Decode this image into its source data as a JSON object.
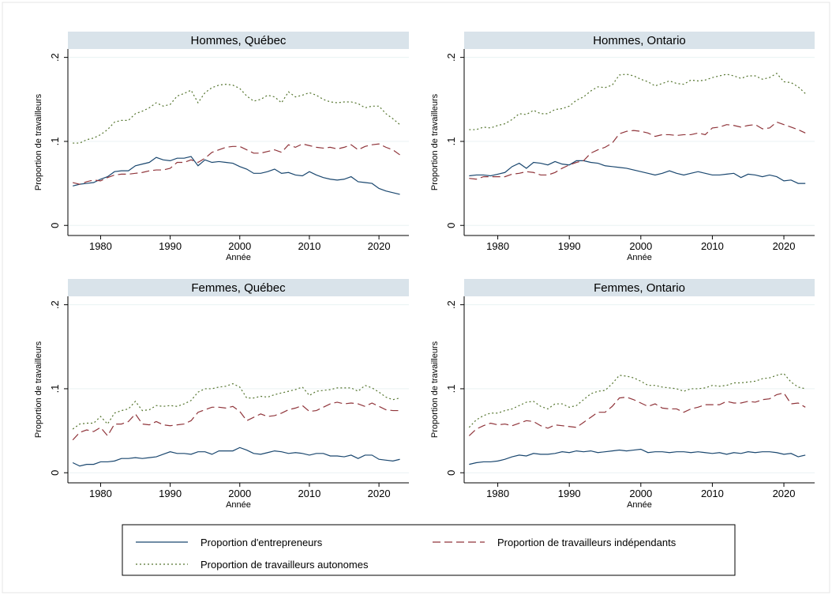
{
  "chart_data": [
    {
      "type": "line",
      "title": "Hommes, Québec",
      "xlabel": "Année",
      "ylabel": "Proportion de travailleurs",
      "x": [
        1976,
        1977,
        1978,
        1979,
        1980,
        1981,
        1982,
        1983,
        1984,
        1985,
        1986,
        1987,
        1988,
        1989,
        1990,
        1991,
        1992,
        1993,
        1994,
        1995,
        1996,
        1997,
        1998,
        1999,
        2000,
        2001,
        2002,
        2003,
        2004,
        2005,
        2006,
        2007,
        2008,
        2009,
        2010,
        2011,
        2012,
        2013,
        2014,
        2015,
        2016,
        2017,
        2018,
        2019,
        2020,
        2021,
        2022,
        2023
      ],
      "xlim": [
        1975.3,
        2024.3
      ],
      "xticks": [
        1980,
        1990,
        2000,
        2010,
        2020
      ],
      "ylim": [
        -0.012,
        0.21
      ],
      "yticks": [
        0,
        {
          "value": 0.1,
          "label": ".1"
        },
        {
          "value": 0.2,
          "label": ".2"
        }
      ],
      "grid": true,
      "series": [
        {
          "name": "Proportion d'entrepreneurs",
          "color": "#1a476f",
          "dash": "solid",
          "values": [
            0.047,
            0.049,
            0.05,
            0.051,
            0.055,
            0.058,
            0.064,
            0.065,
            0.065,
            0.071,
            0.073,
            0.075,
            0.081,
            0.078,
            0.077,
            0.08,
            0.08,
            0.082,
            0.071,
            0.078,
            0.075,
            0.076,
            0.075,
            0.074,
            0.07,
            0.067,
            0.062,
            0.062,
            0.064,
            0.067,
            0.062,
            0.063,
            0.06,
            0.059,
            0.064,
            0.06,
            0.057,
            0.055,
            0.054,
            0.055,
            0.058,
            0.052,
            0.051,
            0.05,
            0.044,
            0.041,
            0.039,
            0.037
          ]
        },
        {
          "name": "Proportion de travailleurs indépendants",
          "color": "#90353b",
          "dash": "long",
          "values": [
            0.051,
            0.049,
            0.052,
            0.054,
            0.053,
            0.057,
            0.06,
            0.061,
            0.061,
            0.062,
            0.063,
            0.065,
            0.066,
            0.066,
            0.068,
            0.075,
            0.075,
            0.078,
            0.075,
            0.08,
            0.087,
            0.09,
            0.093,
            0.094,
            0.094,
            0.09,
            0.086,
            0.086,
            0.088,
            0.09,
            0.087,
            0.096,
            0.093,
            0.097,
            0.095,
            0.093,
            0.092,
            0.093,
            0.091,
            0.093,
            0.096,
            0.09,
            0.094,
            0.096,
            0.097,
            0.093,
            0.09,
            0.084
          ]
        },
        {
          "name": "Proportion de travailleurs autonomes",
          "color": "#55752f",
          "dash": "dot",
          "values": [
            0.098,
            0.098,
            0.102,
            0.104,
            0.108,
            0.114,
            0.123,
            0.125,
            0.125,
            0.133,
            0.136,
            0.14,
            0.146,
            0.142,
            0.144,
            0.154,
            0.157,
            0.161,
            0.146,
            0.158,
            0.164,
            0.167,
            0.168,
            0.167,
            0.163,
            0.154,
            0.148,
            0.15,
            0.155,
            0.153,
            0.146,
            0.159,
            0.153,
            0.155,
            0.158,
            0.155,
            0.15,
            0.147,
            0.146,
            0.147,
            0.147,
            0.145,
            0.14,
            0.142,
            0.142,
            0.133,
            0.127,
            0.12
          ]
        }
      ]
    },
    {
      "type": "line",
      "title": "Hommes, Ontario",
      "xlabel": "Année",
      "ylabel": "Proportion de travailleurs",
      "x": [
        1976,
        1977,
        1978,
        1979,
        1980,
        1981,
        1982,
        1983,
        1984,
        1985,
        1986,
        1987,
        1988,
        1989,
        1990,
        1991,
        1992,
        1993,
        1994,
        1995,
        1996,
        1997,
        1998,
        1999,
        2000,
        2001,
        2002,
        2003,
        2004,
        2005,
        2006,
        2007,
        2008,
        2009,
        2010,
        2011,
        2012,
        2013,
        2014,
        2015,
        2016,
        2017,
        2018,
        2019,
        2020,
        2021,
        2022,
        2023
      ],
      "xlim": [
        1975.3,
        2024.3
      ],
      "xticks": [
        1980,
        1990,
        2000,
        2010,
        2020
      ],
      "ylim": [
        -0.012,
        0.21
      ],
      "yticks": [
        0,
        {
          "value": 0.1,
          "label": ".1"
        },
        {
          "value": 0.2,
          "label": ".2"
        }
      ],
      "grid": true,
      "series": [
        {
          "name": "Proportion d'entrepreneurs",
          "color": "#1a476f",
          "dash": "solid",
          "values": [
            0.059,
            0.06,
            0.06,
            0.059,
            0.061,
            0.063,
            0.07,
            0.074,
            0.068,
            0.075,
            0.074,
            0.072,
            0.076,
            0.073,
            0.072,
            0.077,
            0.077,
            0.075,
            0.074,
            0.071,
            0.07,
            0.069,
            0.068,
            0.066,
            0.064,
            0.062,
            0.06,
            0.062,
            0.065,
            0.062,
            0.06,
            0.062,
            0.064,
            0.062,
            0.06,
            0.06,
            0.061,
            0.062,
            0.057,
            0.061,
            0.06,
            0.058,
            0.06,
            0.058,
            0.053,
            0.054,
            0.05,
            0.05
          ]
        },
        {
          "name": "Proportion de travailleurs indépendants",
          "color": "#90353b",
          "dash": "long",
          "values": [
            0.056,
            0.055,
            0.058,
            0.058,
            0.058,
            0.058,
            0.061,
            0.062,
            0.064,
            0.063,
            0.06,
            0.06,
            0.063,
            0.068,
            0.072,
            0.075,
            0.077,
            0.086,
            0.09,
            0.093,
            0.098,
            0.109,
            0.112,
            0.113,
            0.112,
            0.11,
            0.106,
            0.108,
            0.108,
            0.107,
            0.108,
            0.108,
            0.11,
            0.108,
            0.116,
            0.117,
            0.12,
            0.119,
            0.117,
            0.119,
            0.12,
            0.115,
            0.116,
            0.123,
            0.12,
            0.117,
            0.114,
            0.11
          ]
        },
        {
          "name": "Proportion de travailleurs autonomes",
          "color": "#55752f",
          "dash": "dot",
          "values": [
            0.114,
            0.114,
            0.117,
            0.116,
            0.119,
            0.121,
            0.126,
            0.133,
            0.132,
            0.137,
            0.133,
            0.133,
            0.138,
            0.139,
            0.142,
            0.149,
            0.153,
            0.16,
            0.165,
            0.164,
            0.167,
            0.179,
            0.18,
            0.178,
            0.174,
            0.171,
            0.166,
            0.169,
            0.172,
            0.169,
            0.168,
            0.173,
            0.172,
            0.173,
            0.176,
            0.178,
            0.18,
            0.178,
            0.175,
            0.178,
            0.178,
            0.174,
            0.176,
            0.181,
            0.171,
            0.17,
            0.165,
            0.157
          ]
        }
      ]
    },
    {
      "type": "line",
      "title": "Femmes, Québec",
      "xlabel": "Année",
      "ylabel": "Proportion de travailleurs",
      "x": [
        1976,
        1977,
        1978,
        1979,
        1980,
        1981,
        1982,
        1983,
        1984,
        1985,
        1986,
        1987,
        1988,
        1989,
        1990,
        1991,
        1992,
        1993,
        1994,
        1995,
        1996,
        1997,
        1998,
        1999,
        2000,
        2001,
        2002,
        2003,
        2004,
        2005,
        2006,
        2007,
        2008,
        2009,
        2010,
        2011,
        2012,
        2013,
        2014,
        2015,
        2016,
        2017,
        2018,
        2019,
        2020,
        2021,
        2022,
        2023
      ],
      "xlim": [
        1975.3,
        2024.3
      ],
      "xticks": [
        1980,
        1990,
        2000,
        2010,
        2020
      ],
      "ylim": [
        -0.012,
        0.21
      ],
      "yticks": [
        0,
        {
          "value": 0.1,
          "label": ".1"
        },
        {
          "value": 0.2,
          "label": ".2"
        }
      ],
      "grid": true,
      "series": [
        {
          "name": "Proportion d'entrepreneurs",
          "color": "#1a476f",
          "dash": "solid",
          "values": [
            0.012,
            0.008,
            0.01,
            0.01,
            0.013,
            0.013,
            0.014,
            0.017,
            0.017,
            0.018,
            0.017,
            0.018,
            0.019,
            0.022,
            0.025,
            0.023,
            0.023,
            0.022,
            0.025,
            0.025,
            0.022,
            0.026,
            0.026,
            0.026,
            0.03,
            0.027,
            0.023,
            0.022,
            0.024,
            0.026,
            0.025,
            0.023,
            0.024,
            0.023,
            0.021,
            0.023,
            0.023,
            0.02,
            0.02,
            0.019,
            0.021,
            0.017,
            0.021,
            0.021,
            0.016,
            0.015,
            0.014,
            0.016
          ]
        },
        {
          "name": "Proportion de travailleurs indépendants",
          "color": "#90353b",
          "dash": "long",
          "values": [
            0.039,
            0.048,
            0.051,
            0.049,
            0.054,
            0.044,
            0.058,
            0.058,
            0.061,
            0.07,
            0.058,
            0.057,
            0.061,
            0.057,
            0.056,
            0.057,
            0.058,
            0.062,
            0.072,
            0.075,
            0.078,
            0.078,
            0.077,
            0.079,
            0.073,
            0.062,
            0.066,
            0.07,
            0.067,
            0.068,
            0.071,
            0.075,
            0.077,
            0.08,
            0.073,
            0.074,
            0.078,
            0.082,
            0.084,
            0.082,
            0.083,
            0.082,
            0.079,
            0.083,
            0.079,
            0.075,
            0.074,
            0.074
          ]
        },
        {
          "name": "Proportion de travailleurs autonomes",
          "color": "#55752f",
          "dash": "dot",
          "values": [
            0.052,
            0.058,
            0.059,
            0.059,
            0.067,
            0.058,
            0.071,
            0.074,
            0.076,
            0.085,
            0.074,
            0.075,
            0.08,
            0.079,
            0.08,
            0.079,
            0.082,
            0.086,
            0.096,
            0.1,
            0.1,
            0.102,
            0.103,
            0.106,
            0.102,
            0.089,
            0.089,
            0.091,
            0.09,
            0.093,
            0.095,
            0.097,
            0.099,
            0.102,
            0.092,
            0.097,
            0.098,
            0.099,
            0.101,
            0.101,
            0.101,
            0.097,
            0.104,
            0.101,
            0.096,
            0.09,
            0.087,
            0.089
          ]
        }
      ]
    },
    {
      "type": "line",
      "title": "Femmes, Ontario",
      "xlabel": "Année",
      "ylabel": "Proportion de travailleurs",
      "x": [
        1976,
        1977,
        1978,
        1979,
        1980,
        1981,
        1982,
        1983,
        1984,
        1985,
        1986,
        1987,
        1988,
        1989,
        1990,
        1991,
        1992,
        1993,
        1994,
        1995,
        1996,
        1997,
        1998,
        1999,
        2000,
        2001,
        2002,
        2003,
        2004,
        2005,
        2006,
        2007,
        2008,
        2009,
        2010,
        2011,
        2012,
        2013,
        2014,
        2015,
        2016,
        2017,
        2018,
        2019,
        2020,
        2021,
        2022,
        2023
      ],
      "xlim": [
        1975.3,
        2024.3
      ],
      "xticks": [
        1980,
        1990,
        2000,
        2010,
        2020
      ],
      "ylim": [
        -0.012,
        0.21
      ],
      "yticks": [
        0,
        {
          "value": 0.1,
          "label": ".1"
        },
        {
          "value": 0.2,
          "label": ".2"
        }
      ],
      "grid": true,
      "series": [
        {
          "name": "Proportion d'entrepreneurs",
          "color": "#1a476f",
          "dash": "solid",
          "values": [
            0.01,
            0.012,
            0.013,
            0.013,
            0.014,
            0.016,
            0.019,
            0.021,
            0.02,
            0.023,
            0.022,
            0.022,
            0.023,
            0.025,
            0.024,
            0.026,
            0.025,
            0.026,
            0.024,
            0.025,
            0.026,
            0.027,
            0.026,
            0.027,
            0.028,
            0.024,
            0.025,
            0.025,
            0.024,
            0.025,
            0.025,
            0.024,
            0.025,
            0.024,
            0.023,
            0.024,
            0.022,
            0.024,
            0.023,
            0.025,
            0.024,
            0.025,
            0.025,
            0.024,
            0.022,
            0.023,
            0.019,
            0.021
          ]
        },
        {
          "name": "Proportion de travailleurs indépendants",
          "color": "#90353b",
          "dash": "long",
          "values": [
            0.044,
            0.052,
            0.056,
            0.059,
            0.057,
            0.058,
            0.056,
            0.059,
            0.062,
            0.061,
            0.056,
            0.053,
            0.057,
            0.056,
            0.055,
            0.054,
            0.06,
            0.066,
            0.072,
            0.072,
            0.079,
            0.089,
            0.09,
            0.087,
            0.083,
            0.079,
            0.082,
            0.077,
            0.076,
            0.076,
            0.072,
            0.076,
            0.078,
            0.081,
            0.081,
            0.081,
            0.085,
            0.083,
            0.083,
            0.085,
            0.084,
            0.087,
            0.088,
            0.093,
            0.095,
            0.082,
            0.083,
            0.078
          ]
        },
        {
          "name": "Proportion de travailleurs autonomes",
          "color": "#55752f",
          "dash": "dot",
          "values": [
            0.054,
            0.063,
            0.068,
            0.071,
            0.071,
            0.074,
            0.076,
            0.08,
            0.084,
            0.085,
            0.079,
            0.076,
            0.082,
            0.082,
            0.078,
            0.08,
            0.087,
            0.094,
            0.097,
            0.098,
            0.106,
            0.116,
            0.115,
            0.113,
            0.109,
            0.104,
            0.104,
            0.102,
            0.101,
            0.1,
            0.097,
            0.1,
            0.1,
            0.101,
            0.104,
            0.103,
            0.104,
            0.107,
            0.107,
            0.108,
            0.109,
            0.112,
            0.113,
            0.116,
            0.118,
            0.108,
            0.102,
            0.1
          ]
        }
      ]
    }
  ]
}
